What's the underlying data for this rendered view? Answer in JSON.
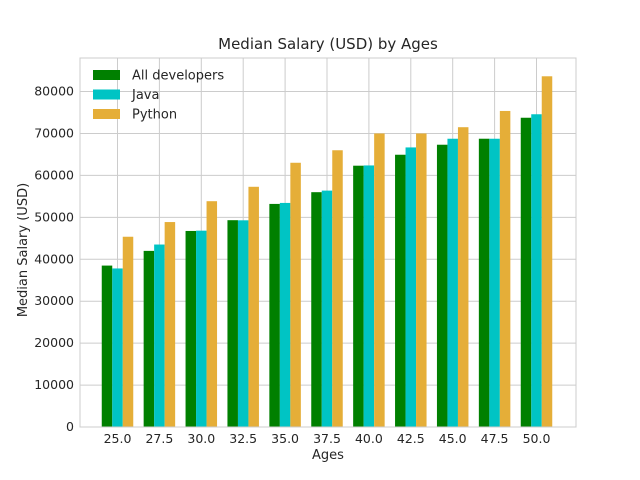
{
  "chart_data": {
    "type": "bar",
    "title": "Median Salary (USD) by Ages",
    "xlabel": "Ages",
    "ylabel": "Median Salary (USD)",
    "ylim": [
      0,
      88000
    ],
    "yticks": [
      0,
      10000,
      20000,
      30000,
      40000,
      50000,
      60000,
      70000,
      80000
    ],
    "ytick_labels": [
      "0",
      "10000",
      "20000",
      "30000",
      "40000",
      "50000",
      "60000",
      "70000",
      "80000"
    ],
    "categories": [
      "25.0",
      "27.5",
      "30.0",
      "32.5",
      "35.0",
      "37.5",
      "40.0",
      "42.5",
      "45.0",
      "47.5",
      "50.0"
    ],
    "series": [
      {
        "name": "All developers",
        "color": "#008000",
        "values": [
          38496,
          42000,
          46752,
          49320,
          53200,
          56000,
          62316,
          64928,
          67317,
          68748,
          73752
        ]
      },
      {
        "name": "Java",
        "color": "#00c4c4",
        "values": [
          37810,
          43515,
          46823,
          49293,
          53437,
          56373,
          62375,
          66674,
          68745,
          68746,
          74583
        ]
      },
      {
        "name": "Python",
        "color": "#e5ae38",
        "values": [
          45372,
          48876,
          53850,
          57287,
          63016,
          65998,
          70003,
          70000,
          71496,
          75370,
          83640
        ]
      }
    ],
    "grid": true,
    "legend_position": "top-left"
  }
}
